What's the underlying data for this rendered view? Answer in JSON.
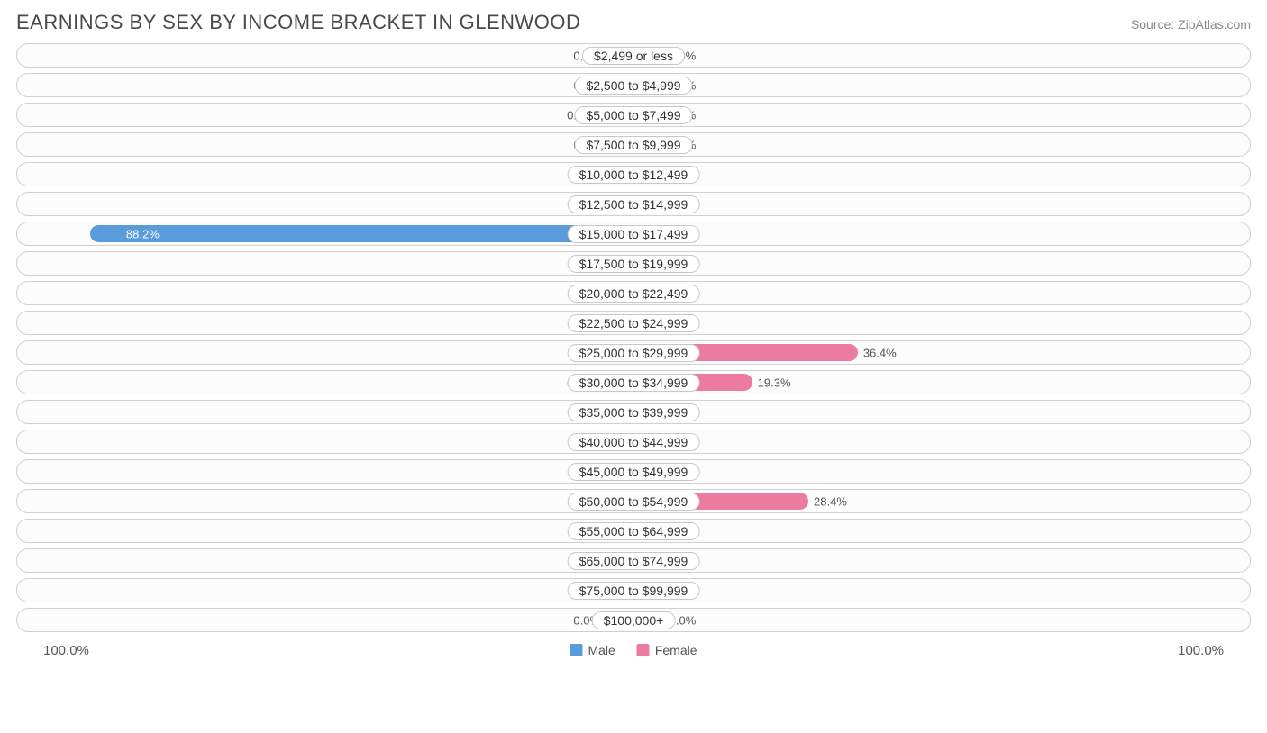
{
  "title": "EARNINGS BY SEX BY INCOME BRACKET IN GLENWOOD",
  "source": "Source: ZipAtlas.com",
  "axis_max_label": "100.0%",
  "axis_max_value": 100.0,
  "legend": {
    "male": "Male",
    "female": "Female"
  },
  "colors": {
    "male_light": "#a6c8ed",
    "male_dark": "#5a9bdc",
    "female_light": "#f5b6c8",
    "female_dark": "#ec7ba0",
    "track_border": "#d0d0d0",
    "background": "#ffffff",
    "text": "#4a4a4a"
  },
  "min_bar_pct": 5.0,
  "dark_threshold": 10.0,
  "label_bump_threshold": 70.0,
  "rows": [
    {
      "label": "$2,499 or less",
      "male": 0.0,
      "female": 0.0
    },
    {
      "label": "$2,500 to $4,999",
      "male": 0.0,
      "female": 0.0
    },
    {
      "label": "$5,000 to $7,499",
      "male": 0.28,
      "female": 0.0
    },
    {
      "label": "$7,500 to $9,999",
      "male": 0.0,
      "female": 1.1
    },
    {
      "label": "$10,000 to $12,499",
      "male": 0.0,
      "female": 0.0
    },
    {
      "label": "$12,500 to $14,999",
      "male": 0.0,
      "female": 3.4
    },
    {
      "label": "$15,000 to $17,499",
      "male": 88.2,
      "female": 0.0
    },
    {
      "label": "$17,500 to $19,999",
      "male": 0.0,
      "female": 2.3
    },
    {
      "label": "$20,000 to $22,499",
      "male": 0.0,
      "female": 0.0
    },
    {
      "label": "$22,500 to $24,999",
      "male": 0.0,
      "female": 0.0
    },
    {
      "label": "$25,000 to $29,999",
      "male": 4.1,
      "female": 36.4
    },
    {
      "label": "$30,000 to $34,999",
      "male": 0.28,
      "female": 19.3
    },
    {
      "label": "$35,000 to $39,999",
      "male": 1.1,
      "female": 0.0
    },
    {
      "label": "$40,000 to $44,999",
      "male": 0.0,
      "female": 2.3
    },
    {
      "label": "$45,000 to $49,999",
      "male": 4.7,
      "female": 2.3
    },
    {
      "label": "$50,000 to $54,999",
      "male": 0.0,
      "female": 28.4
    },
    {
      "label": "$55,000 to $64,999",
      "male": 0.0,
      "female": 4.6
    },
    {
      "label": "$65,000 to $74,999",
      "male": 1.4,
      "female": 0.0
    },
    {
      "label": "$75,000 to $99,999",
      "male": 0.0,
      "female": 0.0
    },
    {
      "label": "$100,000+",
      "male": 0.0,
      "female": 0.0
    }
  ]
}
